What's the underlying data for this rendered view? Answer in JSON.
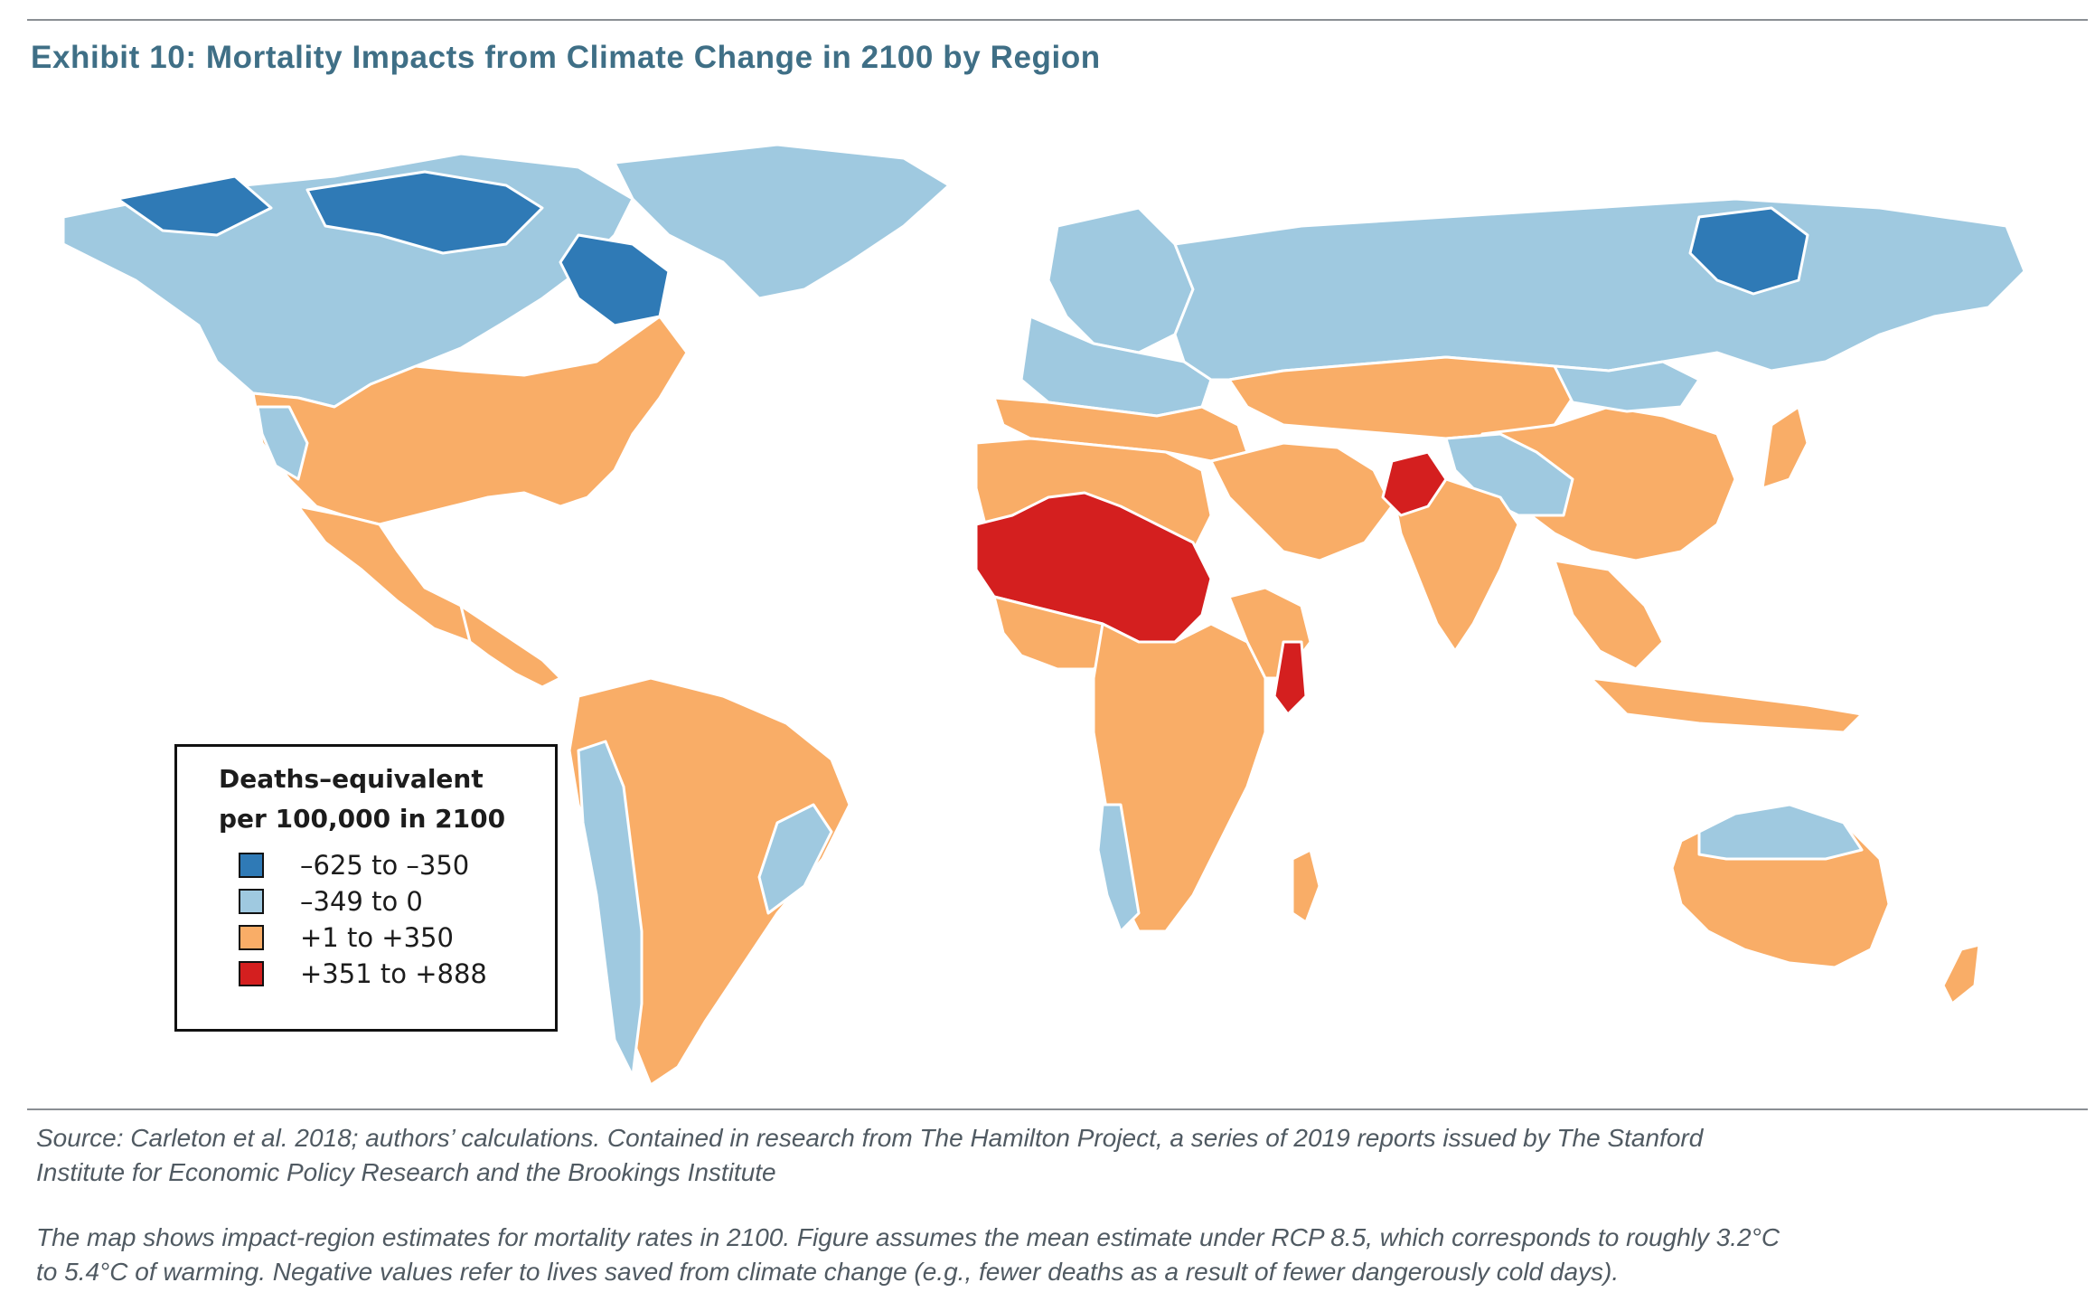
{
  "title": "Exhibit 10: Mortality Impacts from Climate Change in 2100 by Region",
  "legend": {
    "title_lines": [
      "Deaths–equivalent",
      "per 100,000 in 2100"
    ],
    "items": [
      {
        "label": "–625 to –350",
        "color": "#2f7ab6"
      },
      {
        "label": "–349 to 0",
        "color": "#9fc9e0"
      },
      {
        "label": "+1 to +350",
        "color": "#f9ad67"
      },
      {
        "label": "+351 to +888",
        "color": "#d41f1f"
      }
    ]
  },
  "source_lines": [
    "Source: Carleton et al. 2018; authors’ calculations. Contained in research from The Hamilton Project, a series of 2019 reports issued by The Stanford",
    "Institute for Economic Policy Research and the Brookings Institute"
  ],
  "note_lines": [
    "The map shows impact-region estimates for mortality rates in 2100. Figure assumes the mean estimate under RCP 8.5, which corresponds to roughly 3.2°C",
    "to 5.4°C of warming. Negative values refer to lives saved from climate change (e.g., fewer deaths as a result of fewer dangerously cold days)."
  ]
}
